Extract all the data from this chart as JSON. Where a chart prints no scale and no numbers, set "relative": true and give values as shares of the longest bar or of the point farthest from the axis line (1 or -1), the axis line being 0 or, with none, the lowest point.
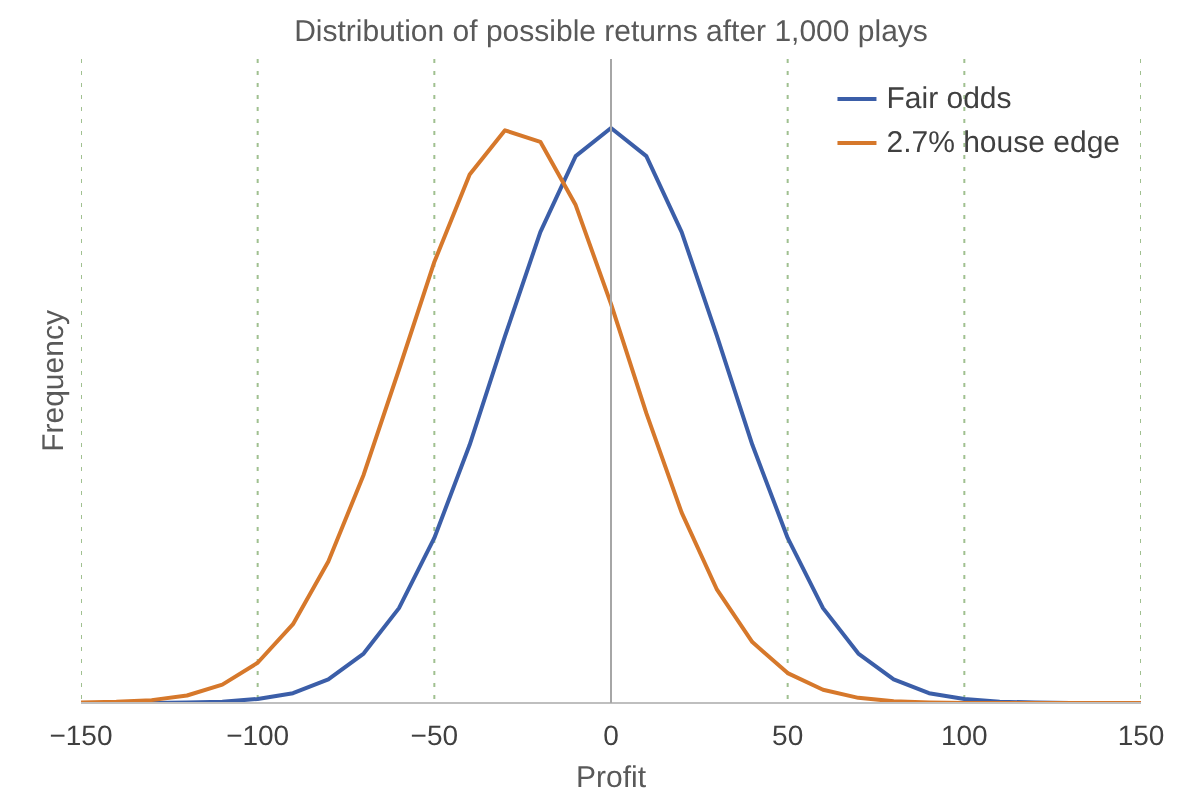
{
  "chart_data": {
    "type": "line",
    "title": "Distribution of possible returns after 1,000 plays",
    "xlabel": "Profit",
    "ylabel": "Frequency",
    "relative": true,
    "x": [
      -150,
      -140,
      -130,
      -120,
      -110,
      -100,
      -90,
      -80,
      -70,
      -60,
      -50,
      -40,
      -30,
      -20,
      -10,
      0,
      10,
      20,
      30,
      40,
      50,
      60,
      70,
      80,
      90,
      100,
      110,
      120,
      130,
      140,
      150
    ],
    "series": [
      {
        "name": "Fair odds",
        "color": "#3b5ea8",
        "values": [
          0,
          0,
          0,
          0.001,
          0.002,
          0.007,
          0.017,
          0.041,
          0.086,
          0.165,
          0.287,
          0.449,
          0.638,
          0.819,
          0.951,
          1,
          0.951,
          0.819,
          0.638,
          0.449,
          0.287,
          0.165,
          0.086,
          0.041,
          0.017,
          0.007,
          0.002,
          0.001,
          0,
          null,
          null
        ]
      },
      {
        "name": "2.7% house edge",
        "color": "#d6782b",
        "values": [
          0.001,
          0.002,
          0.005,
          0.013,
          0.032,
          0.07,
          0.137,
          0.246,
          0.397,
          0.58,
          0.767,
          0.919,
          0.996,
          0.976,
          0.866,
          0.694,
          0.504,
          0.331,
          0.197,
          0.106,
          0.052,
          0.023,
          0.009,
          0.003,
          0.001,
          0,
          0,
          0,
          0,
          0,
          0
        ]
      }
    ],
    "xlim": [
      -150,
      150
    ],
    "xticks": [
      -150,
      -100,
      -50,
      0,
      50,
      100,
      150
    ],
    "grid": "x",
    "legend": "top right",
    "marker": "none",
    "line_style": "solid",
    "ref_lines": [
      {
        "axis": "x",
        "value": 0,
        "color": "#a6a6a6",
        "line_style": "solid"
      }
    ]
  }
}
